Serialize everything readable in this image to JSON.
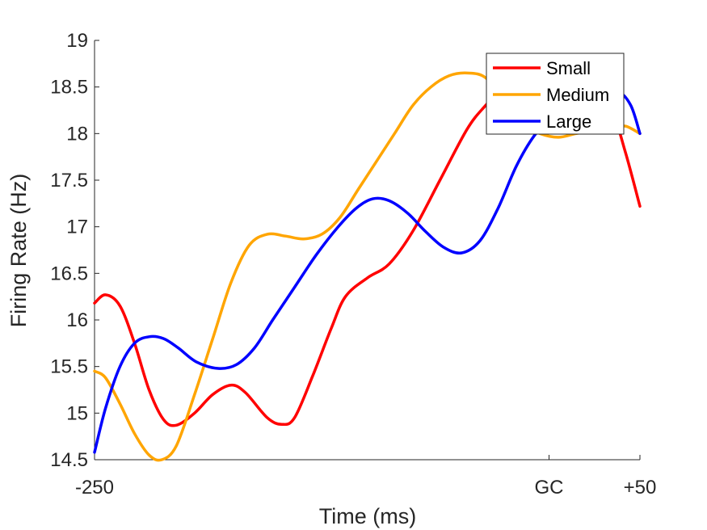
{
  "chart_data": {
    "type": "line",
    "xlabel": "Time (ms)",
    "ylabel": "Firing Rate (Hz)",
    "ylim": [
      14.5,
      19
    ],
    "xlim": [
      -250,
      50
    ],
    "xticks": [
      {
        "value": -250,
        "label": "-250"
      },
      {
        "value": 0,
        "label": "GC"
      },
      {
        "value": 50,
        "label": "+50"
      }
    ],
    "yticks": [
      {
        "value": 14.5,
        "label": "14.5"
      },
      {
        "value": 15,
        "label": "15"
      },
      {
        "value": 15.5,
        "label": "15.5"
      },
      {
        "value": 16,
        "label": "16"
      },
      {
        "value": 16.5,
        "label": "16.5"
      },
      {
        "value": 17,
        "label": "17"
      },
      {
        "value": 17.5,
        "label": "17.5"
      },
      {
        "value": 18,
        "label": "18"
      },
      {
        "value": 18.5,
        "label": "18.5"
      },
      {
        "value": 19,
        "label": "19"
      }
    ],
    "grid": false,
    "legend_position": "top-right",
    "series": [
      {
        "name": "Small",
        "color": "#ff0000",
        "points": [
          [
            -250,
            16.18
          ],
          [
            -244,
            16.27
          ],
          [
            -236,
            16.15
          ],
          [
            -228,
            15.75
          ],
          [
            -220,
            15.25
          ],
          [
            -212,
            14.93
          ],
          [
            -205,
            14.87
          ],
          [
            -195,
            15.0
          ],
          [
            -185,
            15.2
          ],
          [
            -175,
            15.3
          ],
          [
            -167,
            15.22
          ],
          [
            -155,
            14.95
          ],
          [
            -147,
            14.88
          ],
          [
            -140,
            14.95
          ],
          [
            -130,
            15.4
          ],
          [
            -120,
            15.9
          ],
          [
            -112,
            16.25
          ],
          [
            -100,
            16.45
          ],
          [
            -88,
            16.6
          ],
          [
            -75,
            16.95
          ],
          [
            -60,
            17.5
          ],
          [
            -45,
            18.05
          ],
          [
            -35,
            18.3
          ],
          [
            -25,
            18.5
          ],
          [
            -15,
            18.6
          ],
          [
            -5,
            18.55
          ],
          [
            5,
            18.45
          ],
          [
            15,
            18.35
          ],
          [
            25,
            18.3
          ],
          [
            35,
            18.2
          ],
          [
            42,
            17.8
          ],
          [
            50,
            17.22
          ]
        ]
      },
      {
        "name": "Medium",
        "color": "#ffa500",
        "points": [
          [
            -250,
            15.45
          ],
          [
            -244,
            15.38
          ],
          [
            -236,
            15.1
          ],
          [
            -228,
            14.78
          ],
          [
            -220,
            14.55
          ],
          [
            -213,
            14.5
          ],
          [
            -205,
            14.65
          ],
          [
            -195,
            15.2
          ],
          [
            -185,
            15.8
          ],
          [
            -175,
            16.4
          ],
          [
            -165,
            16.8
          ],
          [
            -155,
            16.92
          ],
          [
            -145,
            16.9
          ],
          [
            -135,
            16.87
          ],
          [
            -125,
            16.92
          ],
          [
            -115,
            17.1
          ],
          [
            -105,
            17.4
          ],
          [
            -95,
            17.7
          ],
          [
            -85,
            18.0
          ],
          [
            -75,
            18.3
          ],
          [
            -65,
            18.5
          ],
          [
            -55,
            18.62
          ],
          [
            -45,
            18.65
          ],
          [
            -35,
            18.6
          ],
          [
            -25,
            18.35
          ],
          [
            -15,
            18.1
          ],
          [
            -5,
            18.0
          ],
          [
            5,
            17.96
          ],
          [
            15,
            18.0
          ],
          [
            25,
            18.02
          ],
          [
            35,
            18.05
          ],
          [
            42,
            18.08
          ],
          [
            50,
            18.0
          ]
        ]
      },
      {
        "name": "Large",
        "color": "#0000ff",
        "points": [
          [
            -250,
            14.58
          ],
          [
            -244,
            15.05
          ],
          [
            -236,
            15.5
          ],
          [
            -228,
            15.75
          ],
          [
            -220,
            15.82
          ],
          [
            -212,
            15.8
          ],
          [
            -204,
            15.7
          ],
          [
            -194,
            15.55
          ],
          [
            -182,
            15.48
          ],
          [
            -172,
            15.52
          ],
          [
            -162,
            15.7
          ],
          [
            -152,
            16.0
          ],
          [
            -140,
            16.35
          ],
          [
            -128,
            16.7
          ],
          [
            -116,
            17.0
          ],
          [
            -106,
            17.2
          ],
          [
            -97,
            17.3
          ],
          [
            -88,
            17.28
          ],
          [
            -78,
            17.15
          ],
          [
            -68,
            16.95
          ],
          [
            -58,
            16.78
          ],
          [
            -48,
            16.72
          ],
          [
            -38,
            16.85
          ],
          [
            -28,
            17.2
          ],
          [
            -18,
            17.65
          ],
          [
            -8,
            17.98
          ],
          [
            0,
            18.12
          ],
          [
            10,
            18.25
          ],
          [
            20,
            18.33
          ],
          [
            30,
            18.4
          ],
          [
            38,
            18.45
          ],
          [
            45,
            18.3
          ],
          [
            50,
            18.0
          ]
        ]
      }
    ]
  }
}
